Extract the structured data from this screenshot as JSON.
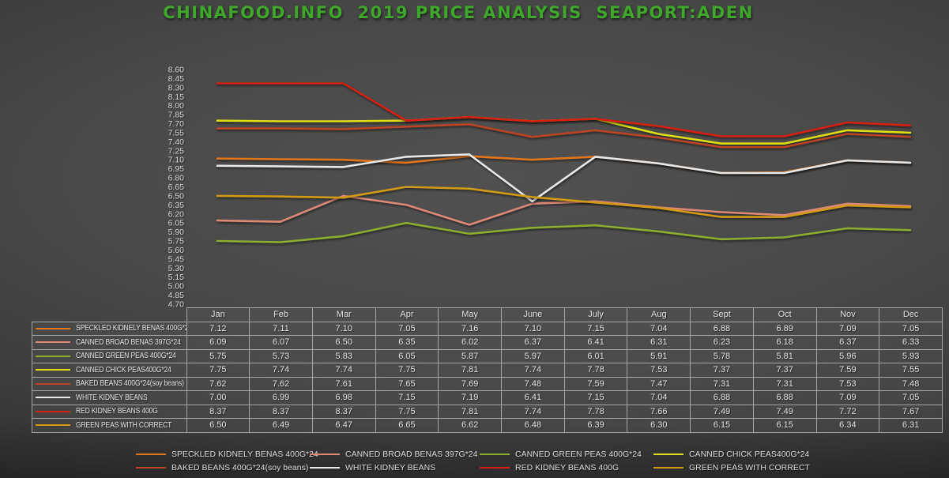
{
  "title": "CHINAFOOD.INFO  2019 PRICE ANALYSIS  SEAPORT:ADEN",
  "colors": {
    "title_green": "#3FA82B",
    "background_center": "#4B4B4B",
    "background_edge": "#262626",
    "table_border": "#A6A6A6",
    "text_light": "#E2E2E2"
  },
  "chart_data": {
    "type": "line",
    "title": "CHINAFOOD.INFO  2019 PRICE ANALYSIS  SEAPORT:ADEN",
    "categories": [
      "Jan",
      "Feb",
      "Mar",
      "Apr",
      "May",
      "June",
      "July",
      "Aug",
      "Sept",
      "Oct",
      "Nov",
      "Dec"
    ],
    "ylim": [
      4.7,
      8.6
    ],
    "ytick_step": 0.15,
    "grid": false,
    "legend_position": "bottom",
    "series": [
      {
        "name": "SPECKLED KIDNELY BENAS 400G*24",
        "color": "#E2761B",
        "values": [
          7.12,
          7.11,
          7.1,
          7.05,
          7.16,
          7.1,
          7.15,
          7.04,
          6.88,
          6.89,
          7.09,
          7.05
        ]
      },
      {
        "name": "CANNED BROAD BENAS 397G*24",
        "color": "#DE8876",
        "values": [
          6.09,
          6.07,
          6.5,
          6.35,
          6.02,
          6.37,
          6.41,
          6.31,
          6.23,
          6.18,
          6.37,
          6.33
        ]
      },
      {
        "name": "CANNED GREEN PEAS 400G*24",
        "color": "#8CAD2E",
        "values": [
          5.75,
          5.73,
          5.83,
          6.05,
          5.87,
          5.97,
          6.01,
          5.91,
          5.78,
          5.81,
          5.96,
          5.93
        ]
      },
      {
        "name": "CANNED CHICK PEAS400G*24",
        "color": "#DFDF10",
        "values": [
          7.75,
          7.74,
          7.74,
          7.75,
          7.81,
          7.74,
          7.78,
          7.53,
          7.37,
          7.37,
          7.59,
          7.55
        ]
      },
      {
        "name": "BAKED BEANS 400G*24(soy beans)",
        "color": "#BC4326",
        "values": [
          7.62,
          7.62,
          7.61,
          7.65,
          7.69,
          7.48,
          7.59,
          7.47,
          7.31,
          7.31,
          7.53,
          7.48
        ]
      },
      {
        "name": "WHITE KIDNEY BEANS",
        "color": "#E8E8E8",
        "values": [
          7.0,
          6.99,
          6.98,
          7.15,
          7.19,
          6.41,
          7.15,
          7.04,
          6.88,
          6.88,
          7.09,
          7.05
        ]
      },
      {
        "name": "RED KIDNEY BEANS 400G",
        "color": "#D51F13",
        "values": [
          8.37,
          8.37,
          8.37,
          7.75,
          7.81,
          7.74,
          7.78,
          7.66,
          7.49,
          7.49,
          7.72,
          7.67
        ]
      },
      {
        "name": "GREEN PEAS WITH CORRECT",
        "color": "#D29B13",
        "values": [
          6.5,
          6.49,
          6.47,
          6.65,
          6.62,
          6.48,
          6.39,
          6.3,
          6.15,
          6.15,
          6.34,
          6.31
        ]
      }
    ]
  }
}
